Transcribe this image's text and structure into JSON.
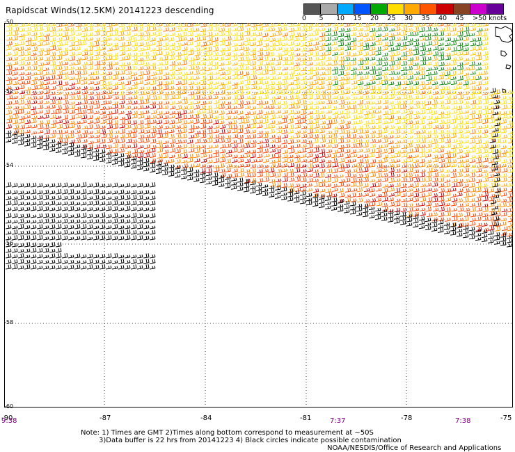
{
  "title": "Rapidscat Winds(12.5KM) 20141223 descending",
  "legend": {
    "labels": [
      "0",
      "5",
      "10",
      "15",
      "20",
      "25",
      "30",
      "35",
      "40",
      "45",
      ">50 knots"
    ],
    "colors": [
      "#555555",
      "#aaaaaa",
      "#00aaff",
      "#0055ff",
      "#00aa00",
      "#ffdd00",
      "#ffaa00",
      "#ff5500",
      "#cc0000",
      "#884422",
      "#cc00cc",
      "#660099"
    ]
  },
  "latitudes": [
    "-50",
    "-52",
    "-54",
    "-56",
    "-58",
    "-60"
  ],
  "longitudes": [
    "-90",
    "-87",
    "-84",
    "-81",
    "-78",
    "-75"
  ],
  "times": [
    "9:38",
    "7:37",
    "7:38"
  ],
  "notes": {
    "line1": "Note: 1) Times are GMT 2)Times along bottom correspond to measurement at ~50S",
    "line2": "3)Data buffer is 22 hrs from 20141223 4) Black circles indicate possible contamination",
    "line3": "NOAA/NESDIS/Office of Research and Applications"
  }
}
